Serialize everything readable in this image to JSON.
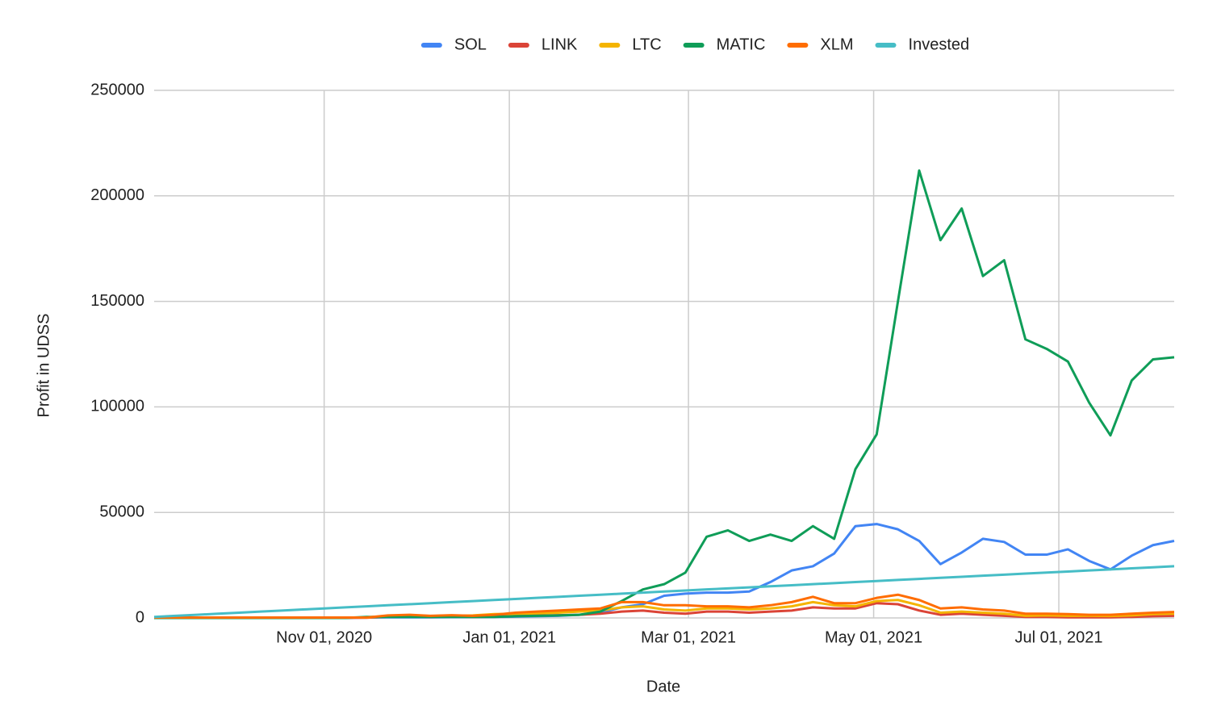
{
  "chart_data": {
    "type": "line",
    "x_label": "Date",
    "y_label": "Profit in UDSS",
    "x": [
      "2020-09-06",
      "2020-09-13",
      "2020-09-20",
      "2020-09-27",
      "2020-10-04",
      "2020-10-11",
      "2020-10-18",
      "2020-10-25",
      "2020-11-01",
      "2020-11-08",
      "2020-11-15",
      "2020-11-22",
      "2020-11-29",
      "2020-12-06",
      "2020-12-13",
      "2020-12-20",
      "2020-12-27",
      "2021-01-03",
      "2021-01-10",
      "2021-01-17",
      "2021-01-24",
      "2021-01-31",
      "2021-02-07",
      "2021-02-14",
      "2021-02-21",
      "2021-02-28",
      "2021-03-07",
      "2021-03-14",
      "2021-03-21",
      "2021-03-28",
      "2021-04-04",
      "2021-04-11",
      "2021-04-18",
      "2021-04-25",
      "2021-05-02",
      "2021-05-09",
      "2021-05-16",
      "2021-05-23",
      "2021-05-30",
      "2021-06-06",
      "2021-06-13",
      "2021-06-20",
      "2021-06-27",
      "2021-07-04",
      "2021-07-11",
      "2021-07-18",
      "2021-07-25",
      "2021-08-01",
      "2021-08-08"
    ],
    "xlim": [
      "2020-09-06",
      "2021-08-08"
    ],
    "xticks": [
      {
        "value": "2020-11-01",
        "label": "Nov 01, 2020"
      },
      {
        "value": "2021-01-01",
        "label": "Jan 01, 2021"
      },
      {
        "value": "2021-03-01",
        "label": "Mar 01, 2021"
      },
      {
        "value": "2021-05-01",
        "label": "May 01, 2021"
      },
      {
        "value": "2021-07-01",
        "label": "Jul 01, 2021"
      }
    ],
    "ylim": [
      0,
      250000
    ],
    "yticks": [
      0,
      50000,
      100000,
      150000,
      200000,
      250000
    ],
    "grid": true,
    "legend": "top",
    "series": [
      {
        "name": "SOL",
        "color": "#4285f4",
        "values": [
          0,
          0,
          0,
          0,
          0,
          0,
          0,
          0,
          0,
          0,
          200,
          300,
          300,
          300,
          400,
          400,
          500,
          600,
          800,
          1000,
          1500,
          2500,
          5000,
          6500,
          10500,
          11500,
          12000,
          12000,
          12500,
          17000,
          22500,
          24500,
          30500,
          43500,
          44500,
          42000,
          36500,
          25500,
          31000,
          37500,
          36000,
          30000,
          30000,
          32500,
          27000,
          23000,
          29500,
          34500,
          36500
        ]
      },
      {
        "name": "LINK",
        "color": "#db4437",
        "values": [
          100,
          100,
          100,
          100,
          100,
          100,
          100,
          100,
          100,
          100,
          100,
          600,
          800,
          500,
          700,
          500,
          600,
          1000,
          1200,
          1300,
          1500,
          2000,
          3000,
          3500,
          2500,
          2000,
          3000,
          3000,
          2500,
          3000,
          3500,
          5000,
          4500,
          4500,
          7000,
          6500,
          3500,
          1500,
          2000,
          1500,
          1000,
          500,
          500,
          300,
          300,
          300,
          500,
          800,
          1000
        ]
      },
      {
        "name": "LTC",
        "color": "#f4b400",
        "values": [
          200,
          200,
          200,
          200,
          200,
          200,
          200,
          200,
          200,
          200,
          200,
          1000,
          1200,
          900,
          1100,
          1200,
          1800,
          2000,
          2200,
          2500,
          3000,
          3500,
          5000,
          5500,
          4000,
          3500,
          4500,
          4500,
          4000,
          4500,
          5500,
          7500,
          6000,
          5500,
          8000,
          8500,
          6000,
          2500,
          3000,
          2500,
          2000,
          1000,
          1200,
          1000,
          1000,
          900,
          1200,
          1800,
          2000
        ]
      },
      {
        "name": "MATIC",
        "color": "#0f9d58",
        "values": [
          0,
          0,
          0,
          0,
          0,
          0,
          0,
          0,
          0,
          0,
          500,
          500,
          500,
          500,
          500,
          500,
          500,
          800,
          1000,
          1200,
          1500,
          3000,
          8000,
          13500,
          16000,
          21500,
          38500,
          41500,
          36500,
          39500,
          36500,
          43500,
          37500,
          70500,
          87000,
          150000,
          212000,
          179000,
          194000,
          162000,
          169500,
          132000,
          127500,
          121500,
          102000,
          86500,
          112500,
          122500,
          123500
        ]
      },
      {
        "name": "XLM",
        "color": "#ff6d01",
        "values": [
          200,
          200,
          200,
          200,
          200,
          200,
          200,
          200,
          200,
          200,
          200,
          1200,
          1500,
          1000,
          1300,
          1000,
          1500,
          2500,
          3000,
          3500,
          4000,
          4500,
          7500,
          7500,
          6000,
          6000,
          5500,
          5500,
          5000,
          6000,
          7500,
          10000,
          7000,
          7000,
          9500,
          11000,
          8500,
          4500,
          5000,
          4000,
          3500,
          2000,
          2000,
          1800,
          1500,
          1500,
          2000,
          2500,
          2800
        ]
      },
      {
        "name": "Invested",
        "color": "#46bdc6",
        "values": [
          500,
          1000,
          1500,
          2000,
          2500,
          3000,
          3500,
          4000,
          4500,
          5000,
          5500,
          6000,
          6500,
          7000,
          7500,
          8000,
          8500,
          9000,
          9500,
          10000,
          10500,
          11000,
          11500,
          12000,
          12500,
          13000,
          13500,
          14000,
          14500,
          15000,
          15500,
          16000,
          16500,
          17000,
          17500,
          18000,
          18500,
          19000,
          19500,
          20000,
          20500,
          21000,
          21500,
          22000,
          22500,
          23000,
          23500,
          24000,
          24500
        ]
      }
    ]
  }
}
